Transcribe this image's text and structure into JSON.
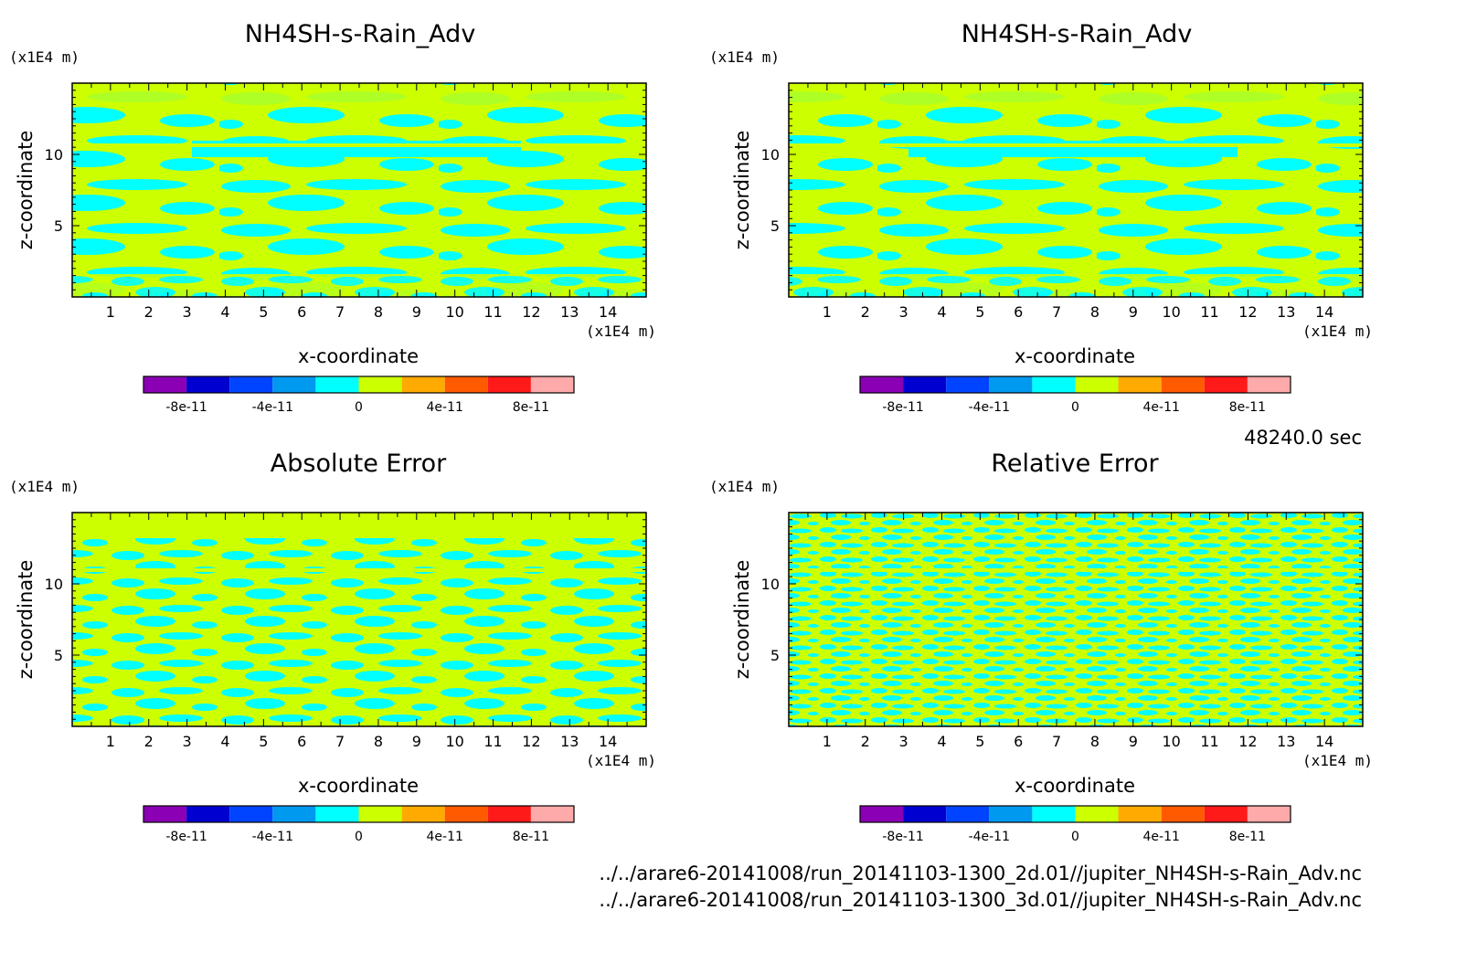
{
  "chart_data": [
    {
      "type": "heatmap",
      "title": "NH4SH-s-Rain_Adv",
      "xlabel": "x-coordinate",
      "ylabel": "z-coordinate",
      "x_unit": "(x1E4 m)",
      "y_unit": "(x1E4 m)",
      "xlim": [
        0,
        15
      ],
      "ylim": [
        0,
        15
      ],
      "x_ticks": [
        "1",
        "2",
        "3",
        "4",
        "5",
        "6",
        "7",
        "8",
        "9",
        "10",
        "11",
        "12",
        "13",
        "14"
      ],
      "y_ticks": [
        "5",
        "10"
      ],
      "colors_present": [
        "#00ffff",
        "#ccff00"
      ],
      "colorbar_labels": [
        "-8e-11",
        "-4e-11",
        "0",
        "4e-11",
        "8e-11"
      ]
    },
    {
      "type": "heatmap",
      "title": "NH4SH-s-Rain_Adv",
      "xlabel": "x-coordinate",
      "ylabel": "z-coordinate",
      "x_unit": "(x1E4 m)",
      "y_unit": "(x1E4 m)",
      "xlim": [
        0,
        15
      ],
      "ylim": [
        0,
        15
      ],
      "x_ticks": [
        "1",
        "2",
        "3",
        "4",
        "5",
        "6",
        "7",
        "8",
        "9",
        "10",
        "11",
        "12",
        "13",
        "14"
      ],
      "y_ticks": [
        "5",
        "10"
      ],
      "colors_present": [
        "#00ffff",
        "#ccff00"
      ],
      "colorbar_labels": [
        "-8e-11",
        "-4e-11",
        "0",
        "4e-11",
        "8e-11"
      ]
    },
    {
      "type": "heatmap",
      "title": "Absolute Error",
      "xlabel": "x-coordinate",
      "ylabel": "z-coordinate",
      "x_unit": "(x1E4 m)",
      "y_unit": "(x1E4 m)",
      "xlim": [
        0,
        15
      ],
      "ylim": [
        0,
        15
      ],
      "x_ticks": [
        "1",
        "2",
        "3",
        "4",
        "5",
        "6",
        "7",
        "8",
        "9",
        "10",
        "11",
        "12",
        "13",
        "14"
      ],
      "y_ticks": [
        "5",
        "10"
      ],
      "colors_present": [
        "#00ffff",
        "#ccff00"
      ],
      "colorbar_labels": [
        "-8e-11",
        "-4e-11",
        "0",
        "4e-11",
        "8e-11"
      ]
    },
    {
      "type": "heatmap",
      "title": "Relative Error",
      "xlabel": "x-coordinate",
      "ylabel": "z-coordinate",
      "x_unit": "(x1E4 m)",
      "y_unit": "(x1E4 m)",
      "xlim": [
        0,
        15
      ],
      "ylim": [
        0,
        15
      ],
      "x_ticks": [
        "1",
        "2",
        "3",
        "4",
        "5",
        "6",
        "7",
        "8",
        "9",
        "10",
        "11",
        "12",
        "13",
        "14"
      ],
      "y_ticks": [
        "5",
        "10"
      ],
      "colors_present": [
        "#00ffff",
        "#ccff00"
      ],
      "colorbar_labels": [
        "-8e-11",
        "-4e-11",
        "0",
        "4e-11",
        "8e-11"
      ]
    }
  ],
  "colorbar": {
    "colors": [
      "#8b00b5",
      "#0000d0",
      "#0044ff",
      "#0099f0",
      "#00ffff",
      "#ccff00",
      "#ffaa00",
      "#ff5a00",
      "#ff1a1a",
      "#ffaaaa"
    ]
  },
  "time_label": "48240.0 sec",
  "files": [
    "../../arare6-20141008/run_20141103-1300_2d.01//jupiter_NH4SH-s-Rain_Adv.nc",
    "../../arare6-20141008/run_20141103-1300_3d.01//jupiter_NH4SH-s-Rain_Adv.nc"
  ]
}
